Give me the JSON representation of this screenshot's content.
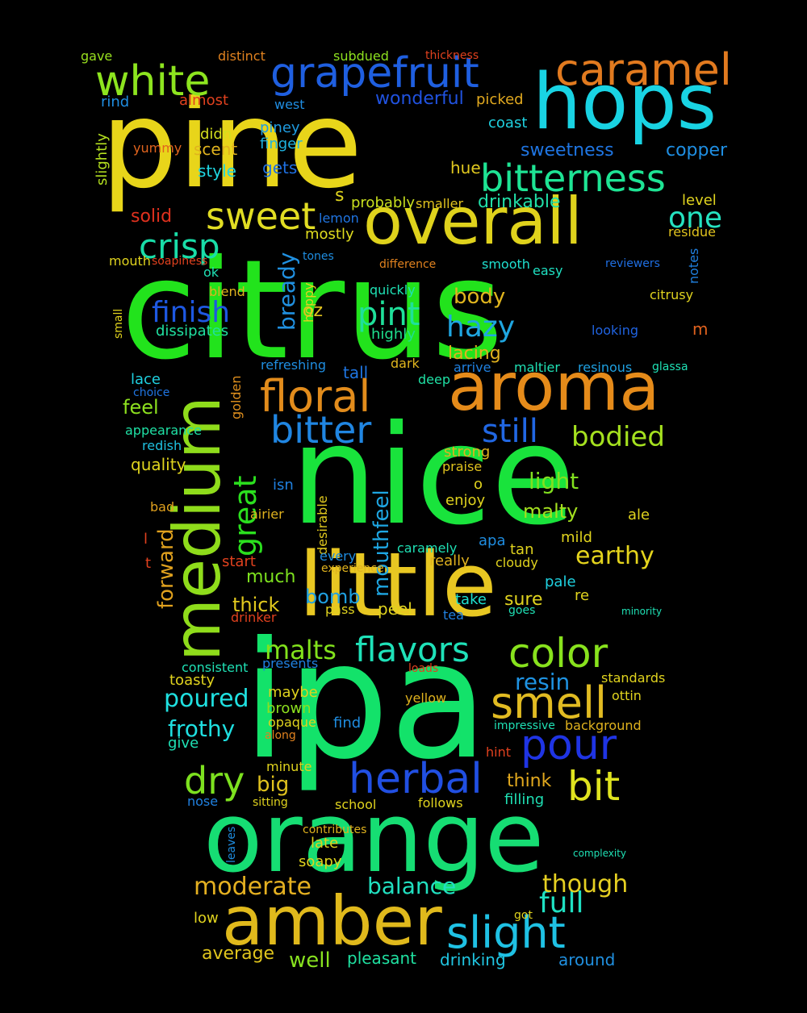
{
  "words": [
    {
      "text": "citrus",
      "color": "#22e31c"
    },
    {
      "text": "nice",
      "color": "#19e33c"
    },
    {
      "text": "ipa",
      "color": "#13e26a"
    },
    {
      "text": "pine",
      "color": "#e8d51a"
    },
    {
      "text": "orange",
      "color": "#16dd73"
    },
    {
      "text": "little",
      "color": "#e8c722"
    },
    {
      "text": "medium",
      "color": "#8fdc1b"
    },
    {
      "text": "hops",
      "color": "#19d3e3"
    },
    {
      "text": "aroma",
      "color": "#e58b1a"
    },
    {
      "text": "amber",
      "color": "#e0b91c"
    },
    {
      "text": "overall",
      "color": "#dfd21c"
    },
    {
      "text": "grapefruit",
      "color": "#1f5fe0"
    },
    {
      "text": "caramel",
      "color": "#e17a1f"
    },
    {
      "text": "white",
      "color": "#8de41f"
    },
    {
      "text": "bitterness",
      "color": "#1ee494"
    },
    {
      "text": "floral",
      "color": "#e28c1c"
    },
    {
      "text": "slight",
      "color": "#1fc1e4"
    },
    {
      "text": "herbal",
      "color": "#214fe2"
    },
    {
      "text": "smell",
      "color": "#e1bb22"
    },
    {
      "text": "color",
      "color": "#88e21d"
    },
    {
      "text": "bitter",
      "color": "#2086e2"
    },
    {
      "text": "sweet",
      "color": "#e1dd23"
    },
    {
      "text": "crisp",
      "color": "#19dda8"
    },
    {
      "text": "pour",
      "color": "#1f34e4"
    },
    {
      "text": "flavors",
      "color": "#1fe2b9"
    },
    {
      "text": "dry",
      "color": "#7de11f"
    },
    {
      "text": "bit",
      "color": "#dfe31f"
    },
    {
      "text": "great",
      "color": "#2be01e"
    },
    {
      "text": "still",
      "color": "#2167e3"
    },
    {
      "text": "finish",
      "color": "#1e58e2"
    },
    {
      "text": "bodied",
      "color": "#a5e11f"
    },
    {
      "text": "one",
      "color": "#25e2c0"
    },
    {
      "text": "pint",
      "color": "#1fe09a"
    },
    {
      "text": "hazy",
      "color": "#1fa6e1"
    },
    {
      "text": "full",
      "color": "#1fe0c2"
    },
    {
      "text": "though",
      "color": "#e6d022"
    },
    {
      "text": "moderate",
      "color": "#e4b021"
    },
    {
      "text": "balance",
      "color": "#21e0c0"
    },
    {
      "text": "poured",
      "color": "#1fe0e0"
    },
    {
      "text": "malts",
      "color": "#82e21c"
    },
    {
      "text": "earthy",
      "color": "#e4d41d"
    },
    {
      "text": "mouthfeel",
      "color": "#1ea6e2"
    },
    {
      "text": "frothy",
      "color": "#1fdfe0"
    },
    {
      "text": "bready",
      "color": "#2090e0"
    },
    {
      "text": "forward",
      "color": "#e0a11e"
    },
    {
      "text": "light",
      "color": "#82e01f"
    },
    {
      "text": "resin",
      "color": "#1f93e2"
    },
    {
      "text": "bomb",
      "color": "#1fa0e1"
    },
    {
      "text": "well",
      "color": "#88e21f"
    },
    {
      "text": "average",
      "color": "#e0c51d"
    },
    {
      "text": "drinkable",
      "color": "#21e0a8"
    },
    {
      "text": "sweetness",
      "color": "#1f75e2"
    },
    {
      "text": "copper",
      "color": "#1f8fe3"
    },
    {
      "text": "wonderful",
      "color": "#2052e0"
    },
    {
      "text": "body",
      "color": "#e0b51e"
    },
    {
      "text": "lacing",
      "color": "#e1b21e"
    },
    {
      "text": "big",
      "color": "#e0c21e"
    },
    {
      "text": "thick",
      "color": "#e1c81e"
    },
    {
      "text": "much",
      "color": "#7de01f"
    },
    {
      "text": "malty",
      "color": "#a4e01f"
    },
    {
      "text": "think",
      "color": "#e1a81e"
    },
    {
      "text": "around",
      "color": "#2090e0"
    },
    {
      "text": "drinking",
      "color": "#20c6e2"
    },
    {
      "text": "pleasant",
      "color": "#1fe0a0"
    },
    {
      "text": "solid",
      "color": "#e0311e"
    },
    {
      "text": "level",
      "color": "#e0d31f"
    },
    {
      "text": "residue",
      "color": "#e0c21e"
    },
    {
      "text": "oz",
      "color": "#e0c21e"
    },
    {
      "text": "mostly",
      "color": "#e1dd1f"
    },
    {
      "text": "lemon",
      "color": "#2075e2"
    },
    {
      "text": "s",
      "color": "#e0d51e"
    },
    {
      "text": "probably",
      "color": "#c9e01e"
    },
    {
      "text": "smaller",
      "color": "#e1c21f"
    },
    {
      "text": "scent",
      "color": "#e0b21e"
    },
    {
      "text": "didn",
      "color": "#d4e01e"
    },
    {
      "text": "yummy",
      "color": "#e1641e"
    },
    {
      "text": "style",
      "color": "#1fd4e0"
    },
    {
      "text": "finger",
      "color": "#1fb3e1"
    },
    {
      "text": "gets",
      "color": "#1f70e2"
    },
    {
      "text": "piney",
      "color": "#1f9be0"
    },
    {
      "text": "hue",
      "color": "#e0c81f"
    },
    {
      "text": "coast",
      "color": "#1fd1e0"
    },
    {
      "text": "picked",
      "color": "#e0a81f"
    },
    {
      "text": "rind",
      "color": "#1f8de0"
    },
    {
      "text": "almost",
      "color": "#e0411e"
    },
    {
      "text": "west",
      "color": "#208de1"
    },
    {
      "text": "slightly",
      "color": "#b4e01f"
    },
    {
      "text": "gave",
      "color": "#99e01f"
    },
    {
      "text": "distinct",
      "color": "#e0821f"
    },
    {
      "text": "subdued",
      "color": "#8de01f"
    },
    {
      "text": "thickness",
      "color": "#e0411e"
    },
    {
      "text": "dissipates",
      "color": "#20e0a0"
    },
    {
      "text": "highly",
      "color": "#1fe08d"
    },
    {
      "text": "quickly",
      "color": "#1fe0b4"
    },
    {
      "text": "smooth",
      "color": "#1fe0d0"
    },
    {
      "text": "easy",
      "color": "#1fe0c2"
    },
    {
      "text": "notes",
      "color": "#2080e0"
    },
    {
      "text": "reviewers",
      "color": "#1f6ee1"
    },
    {
      "text": "looking",
      "color": "#2063e0"
    },
    {
      "text": "citrusy",
      "color": "#e0d31f"
    },
    {
      "text": "m",
      "color": "#e0621e"
    },
    {
      "text": "tall",
      "color": "#1f75e1"
    },
    {
      "text": "dark",
      "color": "#e0b51e"
    },
    {
      "text": "deep",
      "color": "#1fe0a4"
    },
    {
      "text": "arrive",
      "color": "#2080e0"
    },
    {
      "text": "maltier",
      "color": "#1fe0b4"
    },
    {
      "text": "resinous",
      "color": "#1fa0e0"
    },
    {
      "text": "glassa",
      "color": "#1fe0b4"
    },
    {
      "text": "refreshing",
      "color": "#1f8de0"
    },
    {
      "text": "golden",
      "color": "#e0901e"
    },
    {
      "text": "feel",
      "color": "#8de01f"
    },
    {
      "text": "lace",
      "color": "#1fd0e0"
    },
    {
      "text": "choice",
      "color": "#2075e2"
    },
    {
      "text": "appearance",
      "color": "#1fe0a4"
    },
    {
      "text": "redish",
      "color": "#1fc1e0"
    },
    {
      "text": "quality",
      "color": "#e0d51e"
    },
    {
      "text": "bad",
      "color": "#e0a11e"
    },
    {
      "text": "isn",
      "color": "#2080e0"
    },
    {
      "text": "airier",
      "color": "#e0b21e"
    },
    {
      "text": "desirable",
      "color": "#e0c81e"
    },
    {
      "text": "strong",
      "color": "#e0b21e"
    },
    {
      "text": "praise",
      "color": "#e0c21e"
    },
    {
      "text": "enjoy",
      "color": "#e0d31e"
    },
    {
      "text": "o",
      "color": "#e0d31e"
    },
    {
      "text": "ale",
      "color": "#e0d31e"
    },
    {
      "text": "mild",
      "color": "#e0d31e"
    },
    {
      "text": "apa",
      "color": "#1f8de0"
    },
    {
      "text": "tan",
      "color": "#e0d31e"
    },
    {
      "text": "cloudy",
      "color": "#e0d31e"
    },
    {
      "text": "really",
      "color": "#e0b21e"
    },
    {
      "text": "caramely",
      "color": "#1fe0b4"
    },
    {
      "text": "experience",
      "color": "#e0b21e"
    },
    {
      "text": "every",
      "color": "#1f8de0"
    },
    {
      "text": "start",
      "color": "#e0411e"
    },
    {
      "text": "pale",
      "color": "#1fd1e0"
    },
    {
      "text": "re",
      "color": "#e0d31e"
    },
    {
      "text": "sure",
      "color": "#e0d31e"
    },
    {
      "text": "take",
      "color": "#1fe0d0"
    },
    {
      "text": "peel",
      "color": "#e0d31e"
    },
    {
      "text": "pass",
      "color": "#e0d31e"
    },
    {
      "text": "tea",
      "color": "#2080e0"
    },
    {
      "text": "goes",
      "color": "#1fe0b4"
    },
    {
      "text": "minority",
      "color": "#1fe0b4"
    },
    {
      "text": "drinker",
      "color": "#e0411e"
    },
    {
      "text": "presents",
      "color": "#2080e0"
    },
    {
      "text": "consistent",
      "color": "#1fe0b4"
    },
    {
      "text": "toasty",
      "color": "#e0d31e"
    },
    {
      "text": "maybe",
      "color": "#e0d31e"
    },
    {
      "text": "brown",
      "color": "#8de01f"
    },
    {
      "text": "opaque",
      "color": "#e0d31e"
    },
    {
      "text": "along",
      "color": "#e0821f"
    },
    {
      "text": "find",
      "color": "#1f8de0"
    },
    {
      "text": "yellow",
      "color": "#e0b21e"
    },
    {
      "text": "loads",
      "color": "#e0411e"
    },
    {
      "text": "standards",
      "color": "#e0d31e"
    },
    {
      "text": "ottin",
      "color": "#e0d31e"
    },
    {
      "text": "impressive",
      "color": "#1fe0b4"
    },
    {
      "text": "background",
      "color": "#e0b21e"
    },
    {
      "text": "hint",
      "color": "#e0411e"
    },
    {
      "text": "give",
      "color": "#1fe0b4"
    },
    {
      "text": "minute",
      "color": "#e0d31e"
    },
    {
      "text": "nose",
      "color": "#2080e0"
    },
    {
      "text": "sitting",
      "color": "#e0d31e"
    },
    {
      "text": "school",
      "color": "#e0d31e"
    },
    {
      "text": "follows",
      "color": "#e0d31e"
    },
    {
      "text": "filling",
      "color": "#1fe0b4"
    },
    {
      "text": "leaves",
      "color": "#1f8de0"
    },
    {
      "text": "late",
      "color": "#e0d31e"
    },
    {
      "text": "soapy",
      "color": "#e0d31e"
    },
    {
      "text": "contributes",
      "color": "#e0b21e"
    },
    {
      "text": "complexity",
      "color": "#1fe0b4"
    },
    {
      "text": "low",
      "color": "#e0d31e"
    },
    {
      "text": "got",
      "color": "#e0d31e"
    },
    {
      "text": "mouth",
      "color": "#e0d31e"
    },
    {
      "text": "soapiness",
      "color": "#e0411e"
    },
    {
      "text": "tones",
      "color": "#1f8de0"
    },
    {
      "text": "difference",
      "color": "#e0821f"
    },
    {
      "text": "blend",
      "color": "#e0b21e"
    },
    {
      "text": "ok",
      "color": "#1fe0b4"
    },
    {
      "text": "hoppy",
      "color": "#e0d31e"
    },
    {
      "text": "small",
      "color": "#e0d31e"
    },
    {
      "text": "l",
      "color": "#e0411e"
    },
    {
      "text": "t",
      "color": "#e0411e"
    }
  ]
}
